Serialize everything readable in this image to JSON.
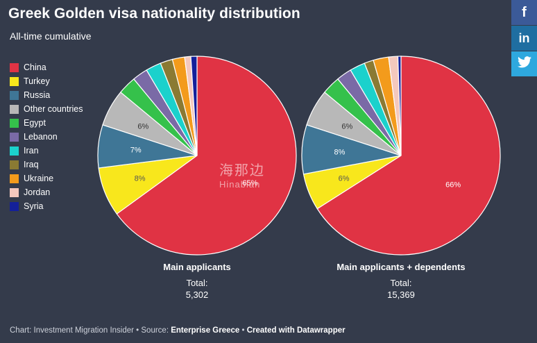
{
  "title": "Greek Golden visa nationality distribution",
  "subtitle": "All-time cumulative",
  "legend": [
    {
      "label": "China",
      "color": "#e03344"
    },
    {
      "label": "Turkey",
      "color": "#f8e71c"
    },
    {
      "label": "Russia",
      "color": "#3f7696"
    },
    {
      "label": "Other countries",
      "color": "#b8b8b8"
    },
    {
      "label": "Egypt",
      "color": "#35c14b"
    },
    {
      "label": "Lebanon",
      "color": "#7a6aa6"
    },
    {
      "label": "Iran",
      "color": "#1bd1cc"
    },
    {
      "label": "Iraq",
      "color": "#8a7a33"
    },
    {
      "label": "Ukraine",
      "color": "#f39b1c"
    },
    {
      "label": "Jordan",
      "color": "#f4c8bd"
    },
    {
      "label": "Syria",
      "color": "#14209a"
    }
  ],
  "chart_data": [
    {
      "type": "pie",
      "title": "Main applicants",
      "total_label": "Total:",
      "total": "5,302",
      "categories": [
        "China",
        "Turkey",
        "Russia",
        "Other countries",
        "Egypt",
        "Lebanon",
        "Iran",
        "Iraq",
        "Ukraine",
        "Jordan",
        "Syria"
      ],
      "values": [
        65,
        8,
        7,
        6,
        3,
        2.5,
        2.5,
        2,
        2,
        1,
        1
      ],
      "labels": [
        "65%",
        "8%",
        "7%",
        "6%",
        "",
        "",
        "",
        "",
        "",
        "",
        ""
      ]
    },
    {
      "type": "pie",
      "title": "Main applicants + dependents",
      "total_label": "Total:",
      "total": "15,369",
      "categories": [
        "China",
        "Turkey",
        "Russia",
        "Other countries",
        "Egypt",
        "Lebanon",
        "Iran",
        "Iraq",
        "Ukraine",
        "Jordan",
        "Syria"
      ],
      "values": [
        66,
        6,
        8,
        6,
        3,
        2.5,
        2.5,
        1.5,
        2.5,
        1.5,
        0.5
      ],
      "labels": [
        "66%",
        "6%",
        "8%",
        "6%",
        "",
        "",
        "",
        "",
        "",
        "",
        ""
      ]
    }
  ],
  "footer": {
    "prefix": "Chart: Investment Migration Insider • Source: ",
    "source": "Enterprise Greece",
    "sep": " • ",
    "created": "Created with Datawrapper"
  },
  "share": [
    {
      "label": "f",
      "icon": "facebook-icon",
      "color": "#3b5a98"
    },
    {
      "label": "in",
      "icon": "linkedin-icon",
      "color": "#1f6ea1"
    },
    {
      "label": "🐦",
      "icon": "twitter-icon",
      "color": "#2ea8de"
    }
  ],
  "watermark": {
    "line1": "海那边",
    "line2": "Hinabian"
  }
}
